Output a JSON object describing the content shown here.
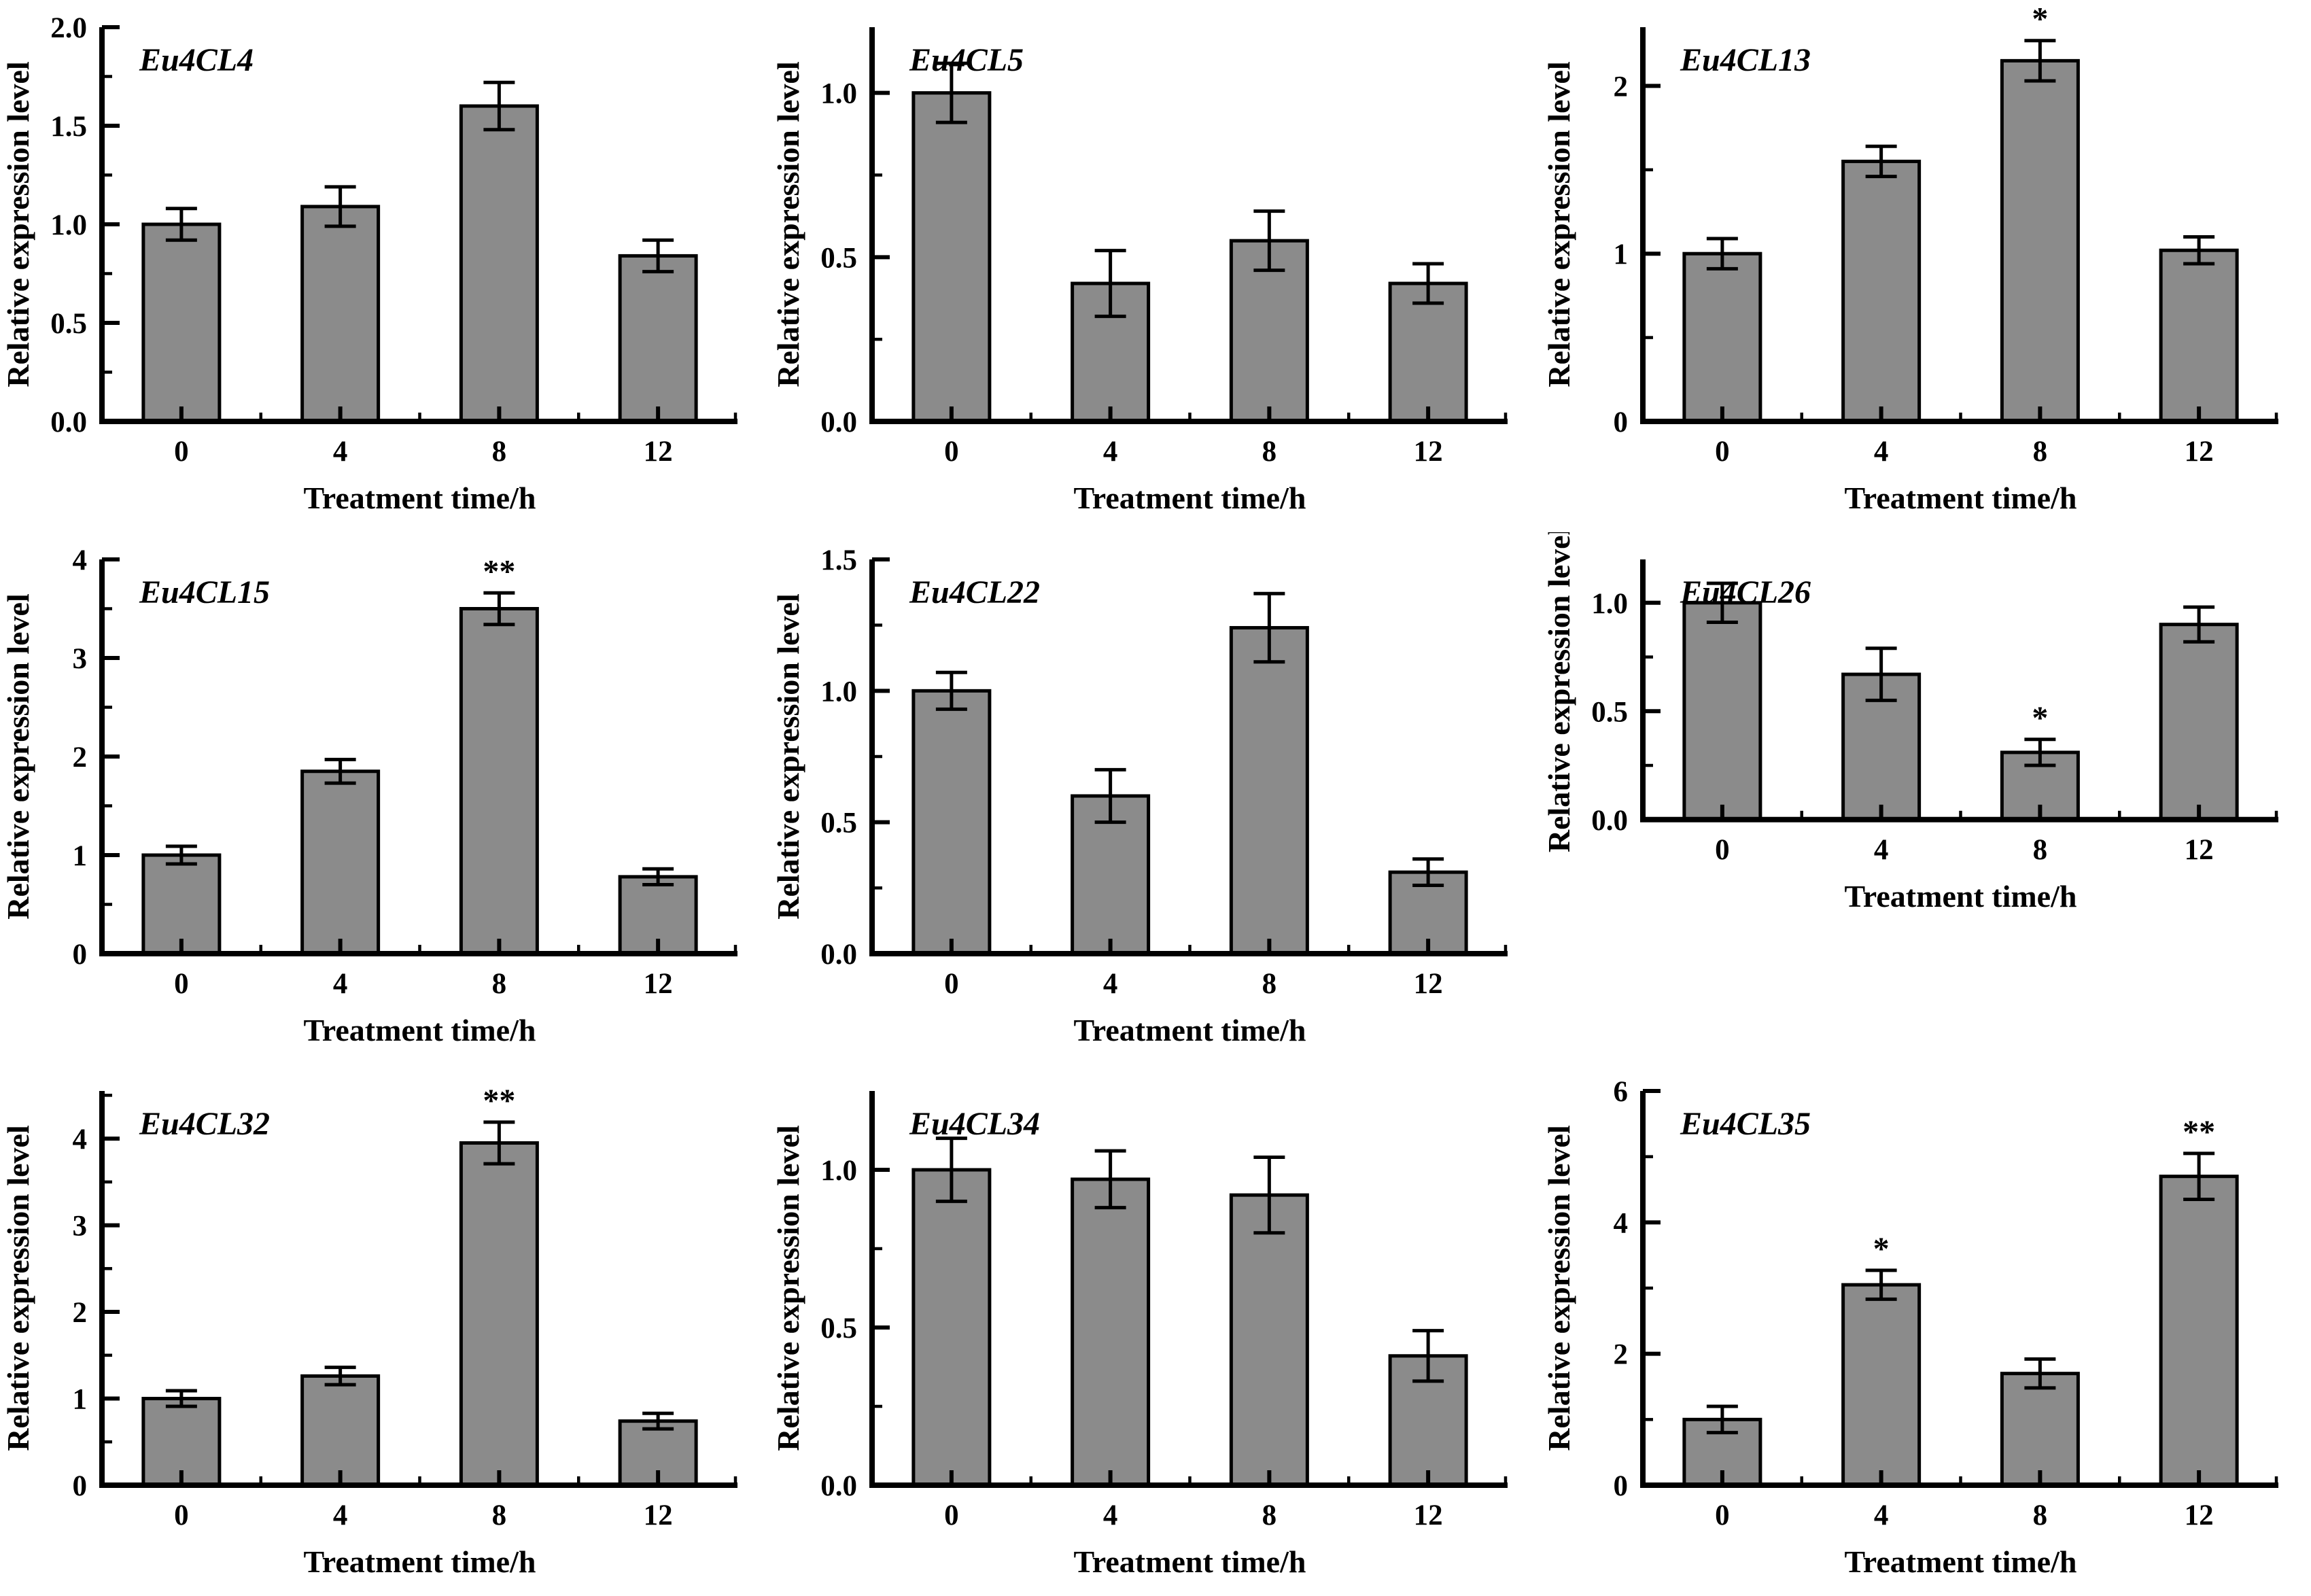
{
  "figure": {
    "description": "Relative expression levels of Eu4CL genes at different treatment times",
    "rows": 3,
    "cols": 3
  },
  "colors": {
    "bar_fill": "#8b8b8b",
    "bar_stroke": "#000000",
    "axis_color": "#000000",
    "text_color": "#000000",
    "background": "#ffffff"
  },
  "chart_data": [
    {
      "type": "bar",
      "gene": "Eu4CL4",
      "xlabel": "Treatment time/h",
      "ylabel": "Relative expression level",
      "categories": [
        "0",
        "4",
        "8",
        "12"
      ],
      "values": [
        1.0,
        1.09,
        1.6,
        0.84
      ],
      "errors": [
        0.08,
        0.1,
        0.12,
        0.08
      ],
      "significance": [
        "",
        "",
        "",
        ""
      ],
      "yticks": [
        "0.0",
        "0.5",
        "1.0",
        "1.5",
        "2.0"
      ],
      "ylim": [
        0,
        2.0
      ],
      "minor_step": 0.25
    },
    {
      "type": "bar",
      "gene": "Eu4CL5",
      "xlabel": "Treatment time/h",
      "ylabel": "Relative expression level",
      "categories": [
        "0",
        "4",
        "8",
        "12"
      ],
      "values": [
        1.0,
        0.42,
        0.55,
        0.42
      ],
      "errors": [
        0.09,
        0.1,
        0.09,
        0.06
      ],
      "significance": [
        "",
        "",
        "",
        ""
      ],
      "yticks": [
        "0.0",
        "0.5",
        "1.0"
      ],
      "ylim": [
        0,
        1.2
      ],
      "minor_step": 0.25
    },
    {
      "type": "bar",
      "gene": "Eu4CL13",
      "xlabel": "Treatment time/h",
      "ylabel": "Relative expression level",
      "categories": [
        "0",
        "4",
        "8",
        "12"
      ],
      "values": [
        1.0,
        1.55,
        2.15,
        1.02
      ],
      "errors": [
        0.09,
        0.09,
        0.12,
        0.08
      ],
      "significance": [
        "",
        "",
        "*",
        ""
      ],
      "yticks": [
        "0",
        "1",
        "2"
      ],
      "ylim": [
        0,
        2.35
      ],
      "minor_step": 0.5
    },
    {
      "type": "bar",
      "gene": "Eu4CL15",
      "xlabel": "Treatment time/h",
      "ylabel": "Relative expression level",
      "categories": [
        "0",
        "4",
        "8",
        "12"
      ],
      "values": [
        1.0,
        1.85,
        3.5,
        0.78
      ],
      "errors": [
        0.09,
        0.12,
        0.16,
        0.08
      ],
      "significance": [
        "",
        "",
        "**",
        ""
      ],
      "yticks": [
        "0",
        "1",
        "2",
        "3",
        "4"
      ],
      "ylim": [
        0,
        4.0
      ],
      "minor_step": 0.5
    },
    {
      "type": "bar",
      "gene": "Eu4CL22",
      "xlabel": "Treatment time/h",
      "ylabel": "Relative expression level",
      "categories": [
        "0",
        "4",
        "8",
        "12"
      ],
      "values": [
        1.0,
        0.6,
        1.24,
        0.31
      ],
      "errors": [
        0.07,
        0.1,
        0.13,
        0.05
      ],
      "significance": [
        "",
        "",
        "",
        ""
      ],
      "yticks": [
        "0.0",
        "0.5",
        "1.0",
        "1.5"
      ],
      "ylim": [
        0,
        1.5
      ],
      "minor_step": 0.25
    },
    {
      "type": "bar",
      "gene": "Eu4CL26",
      "xlabel": "Treatment time/h",
      "ylabel": "Relative expression level",
      "categories": [
        "0",
        "4",
        "8",
        "12"
      ],
      "values": [
        1.0,
        0.67,
        0.31,
        0.9
      ],
      "errors": [
        0.09,
        0.12,
        0.06,
        0.08
      ],
      "significance": [
        "",
        "",
        "*",
        ""
      ],
      "yticks": [
        "0.0",
        "0.5",
        "1.0"
      ],
      "ylim": [
        0,
        1.2
      ],
      "minor_step": 0.25
    },
    {
      "type": "bar",
      "gene": "Eu4CL32",
      "xlabel": "Treatment time/h",
      "ylabel": "Relative expression level",
      "categories": [
        "0",
        "4",
        "8",
        "12"
      ],
      "values": [
        1.0,
        1.26,
        3.95,
        0.74
      ],
      "errors": [
        0.09,
        0.1,
        0.24,
        0.09
      ],
      "significance": [
        "",
        "",
        "**",
        ""
      ],
      "yticks": [
        "0",
        "1",
        "2",
        "3",
        "4"
      ],
      "ylim": [
        0,
        4.55
      ],
      "minor_step": 0.5
    },
    {
      "type": "bar",
      "gene": "Eu4CL34",
      "xlabel": "Treatment time/h",
      "ylabel": "Relative expression level",
      "categories": [
        "0",
        "4",
        "8",
        "12"
      ],
      "values": [
        1.0,
        0.97,
        0.92,
        0.41
      ],
      "errors": [
        0.1,
        0.09,
        0.12,
        0.08
      ],
      "significance": [
        "",
        "",
        "",
        ""
      ],
      "yticks": [
        "0.0",
        "0.5",
        "1.0"
      ],
      "ylim": [
        0,
        1.25
      ],
      "minor_step": 0.25
    },
    {
      "type": "bar",
      "gene": "Eu4CL35",
      "xlabel": "Treatment time/h",
      "ylabel": "Relative expression level",
      "categories": [
        "0",
        "4",
        "8",
        "12"
      ],
      "values": [
        1.0,
        3.05,
        1.7,
        4.7
      ],
      "errors": [
        0.2,
        0.22,
        0.22,
        0.35
      ],
      "significance": [
        "",
        "*",
        "",
        "**"
      ],
      "yticks": [
        "0",
        "2",
        "4",
        "6"
      ],
      "ylim": [
        0,
        6.0
      ],
      "minor_step": 1.0
    }
  ]
}
